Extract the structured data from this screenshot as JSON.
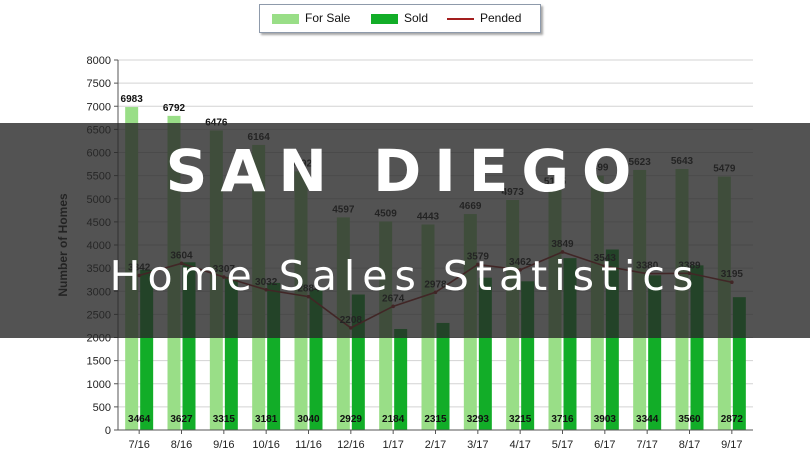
{
  "chart_data": {
    "type": "bar",
    "categories": [
      "7/16",
      "8/16",
      "9/16",
      "10/16",
      "11/16",
      "12/16",
      "1/17",
      "2/17",
      "3/17",
      "4/17",
      "5/17",
      "6/17",
      "7/17",
      "8/17",
      "9/17"
    ],
    "series": [
      {
        "name": "For Sale",
        "type": "bar",
        "color": "#99de87",
        "values": [
          6983,
          6792,
          6476,
          6164,
          5592,
          4597,
          4509,
          4443,
          4669,
          4973,
          5195,
          5499,
          5623,
          5643,
          5479
        ]
      },
      {
        "name": "Sold",
        "type": "bar",
        "color": "#12ad28",
        "values": [
          3464,
          3627,
          3315,
          3181,
          3040,
          2929,
          2184,
          2315,
          3293,
          3215,
          3716,
          3903,
          3344,
          3560,
          2872
        ]
      },
      {
        "name": "Pended",
        "type": "line",
        "color": "#a31e1e",
        "values": [
          3342,
          3604,
          3307,
          3032,
          2884,
          2208,
          2674,
          2978,
          3579,
          3462,
          3849,
          3543,
          3380,
          3389,
          3195
        ]
      }
    ],
    "title": "",
    "xlabel": "",
    "ylabel": "Number of Homes",
    "ylim": [
      0,
      8000
    ],
    "yticks": [
      0,
      500,
      1000,
      1500,
      2000,
      2500,
      3000,
      3500,
      4000,
      4500,
      5000,
      5500,
      6000,
      6500,
      7000,
      7500,
      8000
    ],
    "grid": true,
    "legend_position": "top-center"
  },
  "legend": [
    {
      "label": "For Sale"
    },
    {
      "label": "Sold"
    },
    {
      "label": "Pended"
    }
  ],
  "colors": {
    "for_sale": "#99de87",
    "sold": "#12ad28",
    "pended": "#a31e1e",
    "banner": "#282828"
  },
  "banner": {
    "title": "SAN DIEGO",
    "subtitle": "Home Sales Statistics"
  }
}
